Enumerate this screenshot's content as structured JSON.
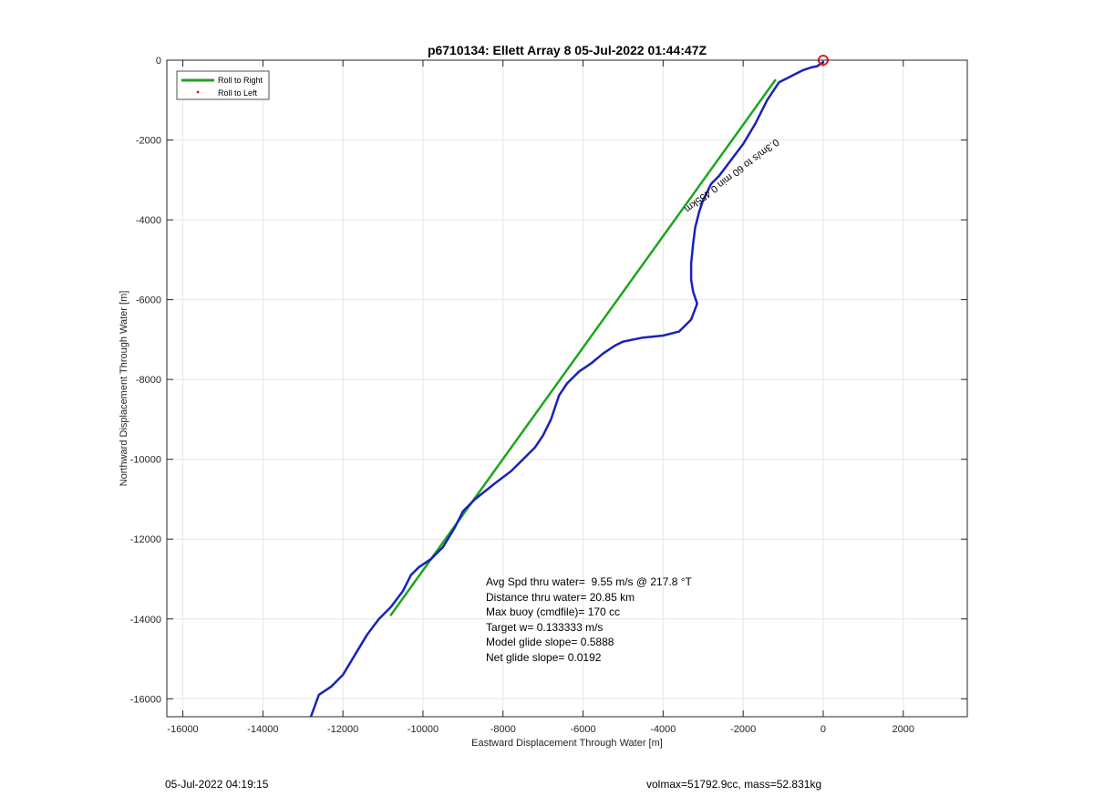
{
  "chart_data": {
    "type": "line",
    "title": "p6710134: Ellett Array 8 05-Jul-2022 01:44:47Z",
    "xlabel": "Eastward Displacement Through Water [m]",
    "ylabel": "Northward Displacement Through Water [m]",
    "xlim": [
      -16400,
      3600
    ],
    "ylim": [
      -16450,
      0
    ],
    "xticks": [
      -16000,
      -14000,
      -12000,
      -10000,
      -8000,
      -6000,
      -4000,
      -2000,
      0,
      2000
    ],
    "yticks": [
      0,
      -2000,
      -4000,
      -6000,
      -8000,
      -10000,
      -12000,
      -14000,
      -16000
    ],
    "grid": true,
    "legend_position": "top-left",
    "legend": [
      {
        "label": "Roll to Right",
        "color": "#1ea51e",
        "style": "line"
      },
      {
        "label": "Roll to Left",
        "color": "#ff0000",
        "style": "dot"
      }
    ],
    "series": [
      {
        "name": "Roll to Right",
        "color": "#1ea51e",
        "x": [
          -1200,
          -10800
        ],
        "y": [
          -500,
          -13900
        ]
      },
      {
        "color": "#1a22b8",
        "x": [
          0,
          -150,
          -300,
          -500,
          -700,
          -900,
          -1100,
          -1200,
          -1400,
          -1700,
          -2000,
          -2300,
          -2600,
          -2800,
          -2900,
          -3000,
          -3100,
          -3200,
          -3250,
          -3300,
          -3300,
          -3250,
          -3150,
          -3300,
          -3600,
          -4000,
          -4500,
          -5000,
          -5200,
          -5500,
          -5800,
          -6100,
          -6400,
          -6600,
          -6800,
          -7000,
          -7200,
          -7500,
          -7800,
          -8200,
          -8700,
          -9000,
          -9200,
          -9500,
          -9800,
          -10100,
          -10300,
          -10500,
          -10800,
          -11100,
          -11400,
          -11700,
          -12000,
          -12300,
          -12600,
          -12800
        ],
        "y": [
          -50,
          -150,
          -180,
          -250,
          -350,
          -450,
          -550,
          -700,
          -1000,
          -1600,
          -2100,
          -2500,
          -2900,
          -3100,
          -3300,
          -3500,
          -3800,
          -4200,
          -4600,
          -5100,
          -5500,
          -5800,
          -6100,
          -6500,
          -6800,
          -6900,
          -6950,
          -7050,
          -7150,
          -7350,
          -7600,
          -7800,
          -8100,
          -8400,
          -9000,
          -9400,
          -9700,
          -10000,
          -10300,
          -10600,
          -11000,
          -11300,
          -11700,
          -12200,
          -12500,
          -12700,
          -12900,
          -13300,
          -13700,
          -14000,
          -14400,
          -14900,
          -15400,
          -15700,
          -15900,
          -16450
        ]
      }
    ],
    "annotations": {
      "stats": [
        "Avg Spd thru water=  9.55 m/s @ 217.8 °T",
        "Distance thru water= 20.85 km",
        "Max buoy (cmdfile)= 170 cc",
        "Target w= 0.133333 m/s",
        "Model glide slope= 0.5888",
        "Net glide slope= 0.0192"
      ],
      "track_label": "0.3m/s to 60 min 0.455km",
      "start_marker": {
        "x": 0,
        "y": 0,
        "color": "#e02020"
      }
    }
  },
  "footer": {
    "left": "05-Jul-2022 04:19:15",
    "right": "volmax=51792.9cc, mass=52.831kg"
  }
}
